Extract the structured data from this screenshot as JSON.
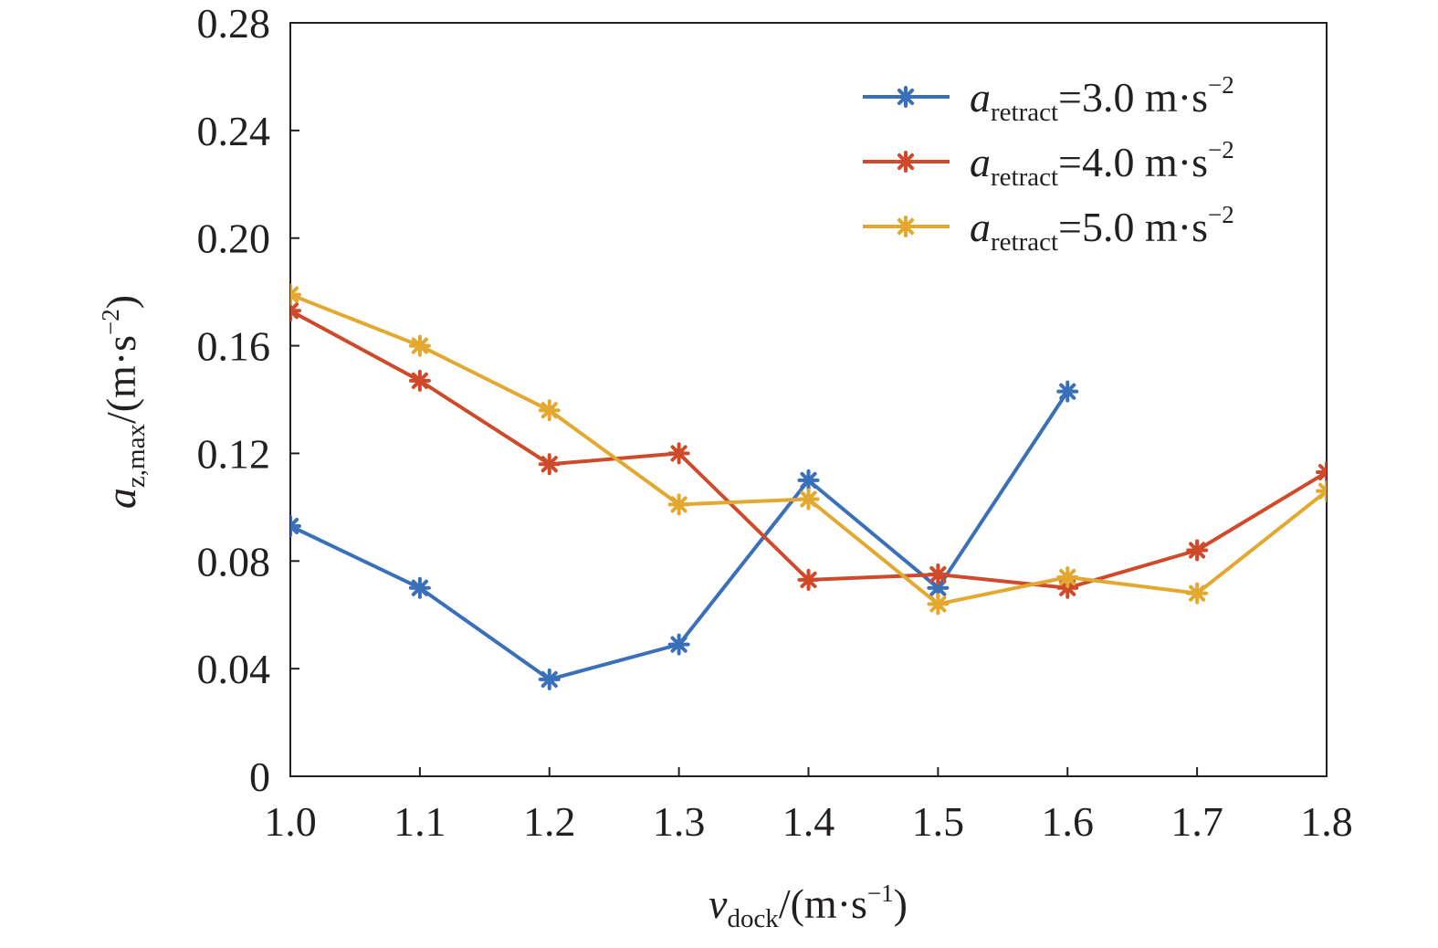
{
  "chart_data": {
    "type": "line",
    "x_var": "v",
    "x_sub": "dock",
    "x_unit": "/(m·s",
    "x_unit_exp": "−1",
    "x_unit_close": ")",
    "y_var": "a",
    "y_sub": "z,max",
    "y_unit": "/(m·s",
    "y_unit_exp": "−2",
    "y_unit_close": ")",
    "x_ticks": [
      "1.0",
      "1.1",
      "1.2",
      "1.3",
      "1.4",
      "1.5",
      "1.6",
      "1.7",
      "1.8"
    ],
    "y_ticks": [
      "0",
      "0.04",
      "0.08",
      "0.12",
      "0.16",
      "0.20",
      "0.24",
      "0.28"
    ],
    "xlim": [
      1.0,
      1.8
    ],
    "ylim": [
      0,
      0.28
    ],
    "grid": false,
    "legend_position": "top-right",
    "legend_var": "a",
    "legend_sub": "retract",
    "legend_unit": "m·s",
    "legend_exp": "−2",
    "series": [
      {
        "name": "=3.0",
        "color": "#3a6fba",
        "x": [
          1.0,
          1.1,
          1.2,
          1.3,
          1.4,
          1.5,
          1.6
        ],
        "y": [
          0.093,
          0.07,
          0.036,
          0.049,
          0.11,
          0.07,
          0.143
        ]
      },
      {
        "name": "=4.0",
        "color": "#cf4a2a",
        "x": [
          1.0,
          1.1,
          1.2,
          1.3,
          1.4,
          1.5,
          1.6,
          1.7,
          1.8
        ],
        "y": [
          0.173,
          0.147,
          0.116,
          0.12,
          0.073,
          0.075,
          0.07,
          0.084,
          0.113
        ]
      },
      {
        "name": "=5.0",
        "color": "#e3a82f",
        "x": [
          1.0,
          1.1,
          1.2,
          1.3,
          1.4,
          1.5,
          1.6,
          1.7,
          1.8
        ],
        "y": [
          0.179,
          0.16,
          0.136,
          0.101,
          0.103,
          0.064,
          0.074,
          0.068,
          0.106
        ]
      }
    ]
  }
}
